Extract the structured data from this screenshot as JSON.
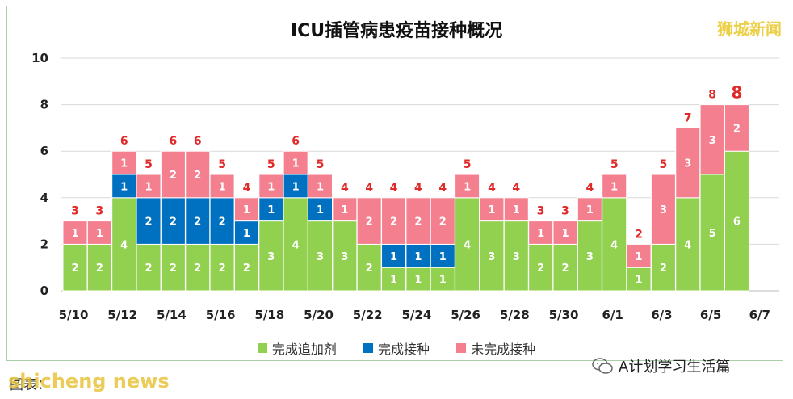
{
  "title": "ICU插管病患疫苗接种概况",
  "watermark": "狮城新闻",
  "legend": [
    {
      "label": "完成追加剂",
      "color": "#92d050"
    },
    {
      "label": "完成接种",
      "color": "#0070c0"
    },
    {
      "label": "未完成接种",
      "color": "#f4808f"
    }
  ],
  "footer": {
    "left_text": "图表：",
    "logo_text": "shicheng news",
    "wechat_text": "A计划学习生活篇"
  },
  "chart_data": {
    "type": "bar",
    "stacked": true,
    "title": "ICU插管病患疫苗接种概况",
    "ylim": [
      0,
      10
    ],
    "yticks": [
      0,
      2,
      4,
      6,
      8,
      10
    ],
    "x_tick_labels": [
      "5/10",
      "5/12",
      "5/14",
      "5/16",
      "5/18",
      "5/20",
      "5/22",
      "5/24",
      "5/26",
      "5/28",
      "5/30",
      "6/1",
      "6/3",
      "6/5",
      "6/7"
    ],
    "categories": [
      "5/10",
      "5/11",
      "5/12",
      "5/13",
      "5/14",
      "5/15",
      "5/16",
      "5/17",
      "5/18",
      "5/19",
      "5/20",
      "5/21",
      "5/22",
      "5/23",
      "5/24",
      "5/25",
      "5/26",
      "5/27",
      "5/28",
      "5/29",
      "5/30",
      "5/31",
      "6/1",
      "6/2",
      "6/3",
      "6/4",
      "6/5",
      "6/6"
    ],
    "series": [
      {
        "name": "完成追加剂",
        "color": "#92d050",
        "values": [
          2,
          2,
          4,
          2,
          2,
          2,
          2,
          2,
          3,
          4,
          3,
          3,
          2,
          1,
          1,
          1,
          4,
          3,
          3,
          2,
          2,
          3,
          4,
          1,
          2,
          4,
          5,
          6
        ]
      },
      {
        "name": "完成接种",
        "color": "#0070c0",
        "values": [
          0,
          0,
          1,
          2,
          2,
          2,
          2,
          1,
          1,
          1,
          1,
          0,
          0,
          1,
          1,
          1,
          0,
          0,
          0,
          0,
          0,
          0,
          0,
          0,
          0,
          0,
          0,
          0
        ]
      },
      {
        "name": "未完成接种",
        "color": "#f4808f",
        "values": [
          1,
          1,
          1,
          1,
          2,
          2,
          1,
          1,
          1,
          1,
          1,
          1,
          2,
          2,
          2,
          2,
          1,
          1,
          1,
          1,
          1,
          1,
          1,
          1,
          3,
          3,
          3,
          2
        ]
      }
    ],
    "totals": [
      3,
      3,
      6,
      5,
      6,
      6,
      5,
      4,
      5,
      6,
      5,
      4,
      4,
      4,
      4,
      4,
      5,
      4,
      4,
      3,
      3,
      4,
      5,
      2,
      5,
      7,
      8,
      8
    ],
    "grid": true
  }
}
